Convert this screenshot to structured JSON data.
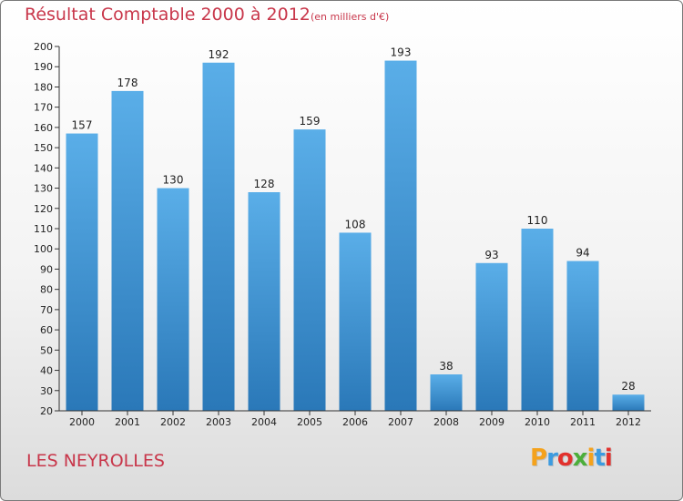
{
  "chart_data": {
    "type": "bar",
    "title": "Résultat Comptable 2000 à 2012",
    "subtitle": "(en milliers d'€)",
    "categories": [
      "2000",
      "2001",
      "2002",
      "2003",
      "2004",
      "2005",
      "2006",
      "2007",
      "2008",
      "2009",
      "2010",
      "2011",
      "2012"
    ],
    "values": [
      157,
      178,
      130,
      192,
      128,
      159,
      108,
      193,
      38,
      93,
      110,
      94,
      28
    ],
    "ylim": [
      20,
      200
    ],
    "ytick_step": 10,
    "xlabel": "",
    "ylabel": "",
    "grid": false
  },
  "commune": "LES NEYROLLES",
  "logo": {
    "letters": [
      "P",
      "r",
      "o",
      "x",
      "i",
      "t",
      "i"
    ],
    "colors": [
      "#f4a21c",
      "#3c9be0",
      "#e2312d",
      "#4cae3a",
      "#f4a21c",
      "#3c9be0",
      "#e2312d"
    ]
  },
  "colors": {
    "title": "#c8364a",
    "bar_top": "#5aaee8",
    "bar_bottom": "#2a78b8",
    "axis": "#333333"
  }
}
